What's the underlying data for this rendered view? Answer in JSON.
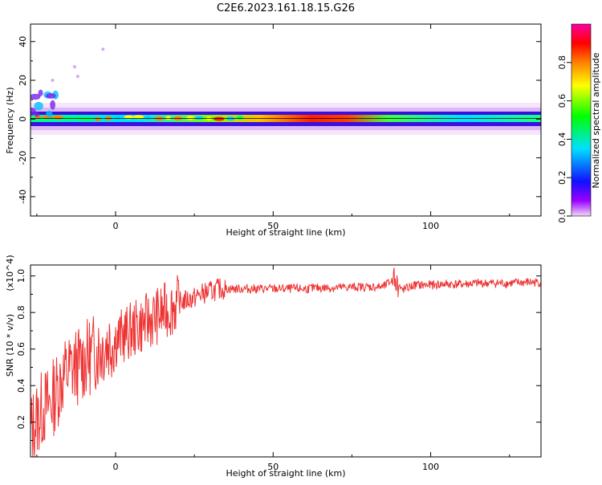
{
  "figure": {
    "title": "C2E6.2023.161.18.15.G26"
  },
  "chart_data": [
    {
      "type": "heatmap",
      "title": "C2E6.2023.161.18.15.G26",
      "xlabel": "Height of straight line (km)",
      "ylabel": "Frequency (Hz)",
      "xlim": [
        -27,
        135
      ],
      "ylim": [
        -50,
        49
      ],
      "x_ticks": [
        "0",
        "50",
        "100"
      ],
      "y_ticks": [
        "40",
        "20",
        "0",
        "-20",
        "-40"
      ],
      "band": {
        "center_hz": 0,
        "note": "narrow band near 0 Hz across all heights, peak amplitude near 55-75 km"
      },
      "colorbar": {
        "label": "Normalized spectral amplitude",
        "range": [
          0,
          1
        ],
        "ticks": [
          "0.0",
          "0.2",
          "0.4",
          "0.6",
          "0.8"
        ],
        "colors": [
          "#f0d8f8",
          "#9b00ff",
          "#1010ff",
          "#00e0ff",
          "#00ff00",
          "#ffff00",
          "#ff8000",
          "#ff0000",
          "#ff00a0"
        ]
      }
    },
    {
      "type": "line",
      "xlabel": "Height of straight line (km)",
      "ylabel": "SNR (10 * v/v)",
      "y_multiplier": "(x10^4)",
      "xlim": [
        -27,
        135
      ],
      "ylim": [
        0.01,
        1.06
      ],
      "x_ticks": [
        "0",
        "50",
        "100"
      ],
      "y_ticks": [
        "0.2",
        "0.4",
        "0.6",
        "0.8",
        "1.0"
      ],
      "series_color": "#ee3333",
      "x": [
        -27,
        -25,
        -23,
        -21,
        -19,
        -17,
        -15,
        -13,
        -11,
        -9,
        -7,
        -5,
        -3,
        -1,
        1,
        3,
        5,
        7,
        9,
        11,
        13,
        15,
        17,
        19,
        21,
        23,
        25,
        27,
        29,
        31,
        33,
        35,
        40,
        45,
        50,
        55,
        60,
        65,
        70,
        75,
        80,
        85,
        88,
        90,
        92,
        95,
        100,
        105,
        110,
        115,
        120,
        125,
        130,
        135
      ],
      "y": [
        0.15,
        0.22,
        0.28,
        0.3,
        0.36,
        0.44,
        0.48,
        0.5,
        0.52,
        0.55,
        0.58,
        0.6,
        0.63,
        0.65,
        0.66,
        0.68,
        0.7,
        0.72,
        0.74,
        0.76,
        0.78,
        0.8,
        0.82,
        0.84,
        0.86,
        0.87,
        0.88,
        0.9,
        0.91,
        0.92,
        0.93,
        0.93,
        0.93,
        0.93,
        0.93,
        0.93,
        0.93,
        0.935,
        0.935,
        0.94,
        0.94,
        0.94,
        0.98,
        0.92,
        0.93,
        0.95,
        0.95,
        0.955,
        0.955,
        0.96,
        0.96,
        0.96,
        0.965,
        0.965
      ]
    }
  ]
}
